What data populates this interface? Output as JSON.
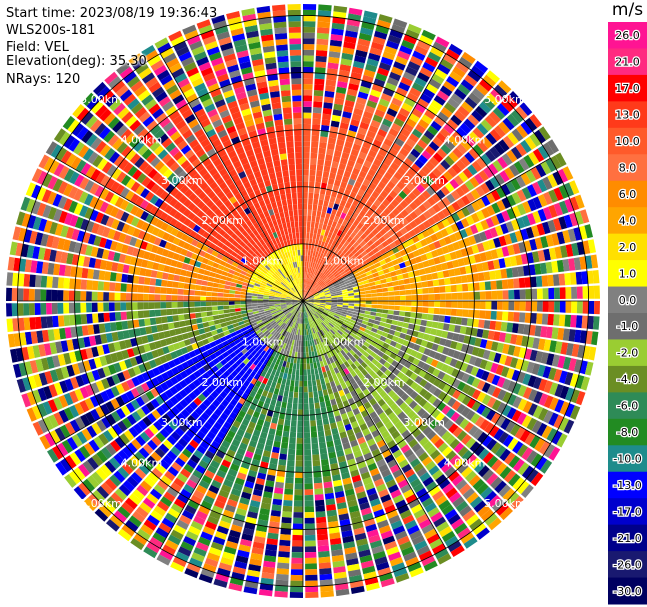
{
  "header": {
    "start_time": "Start time: 2023/08/19 19:36:43",
    "instrument": "WLS200s-181",
    "field": "Field: VEL",
    "elevation": "Elevation(deg): 35.30",
    "nrays": "NRays: 120"
  },
  "colorbar": {
    "unit": "m/s",
    "ticks": [
      "26.0",
      "21.0",
      "17.0",
      "13.0",
      "10.0",
      "8.0",
      "6.0",
      "4.0",
      "2.0",
      "1.0",
      "0.0",
      "-1.0",
      "-2.0",
      "-4.0",
      "-6.0",
      "-8.0",
      "-10.0",
      "-13.0",
      "-17.0",
      "-21.0",
      "-26.0",
      "-30.0"
    ],
    "colors": [
      "#ff1493",
      "#ff2a80",
      "#ff0000",
      "#ff3a1a",
      "#ff5a2a",
      "#ff7040",
      "#ff8c00",
      "#ffa500",
      "#ffe000",
      "#ffff00",
      "#808080",
      "#6e6e6e",
      "#9acd32",
      "#6b8e23",
      "#2e8b57",
      "#228b22",
      "#1e8c8c",
      "#0000ff",
      "#0000cd",
      "#00008b",
      "#191970",
      "#000060"
    ]
  },
  "chart_data": {
    "type": "heatmap",
    "projection": "polar-ppi",
    "field": "VEL",
    "units": "m/s",
    "nrays": 120,
    "range_ring_labels": [
      "1.00km",
      "2.00km",
      "3.00km",
      "4.00km",
      "5.00km"
    ],
    "range_rings_km": [
      1,
      2,
      3,
      4,
      5
    ],
    "max_range_km": 5.2,
    "vlim": [
      -30,
      26
    ],
    "pattern": {
      "inner_clean_range_km": 3.0,
      "sectors": [
        {
          "azimuth_deg": [
            300,
            360
          ],
          "velocity": 13
        },
        {
          "azimuth_deg": [
            0,
            60
          ],
          "velocity": 10
        },
        {
          "azimuth_deg": [
            60,
            95
          ],
          "velocity": 4
        },
        {
          "azimuth_deg": [
            95,
            165
          ],
          "velocity": -2
        },
        {
          "azimuth_deg": [
            165,
            210
          ],
          "velocity": -6
        },
        {
          "azimuth_deg": [
            210,
            245
          ],
          "velocity": -13
        },
        {
          "azimuth_deg": [
            245,
            270
          ],
          "velocity": -4
        },
        {
          "azimuth_deg": [
            270,
            300
          ],
          "velocity": 6
        }
      ],
      "near_field": [
        {
          "azimuth_deg": [
            60,
            110
          ],
          "velocity": 0.0
        },
        {
          "azimuth_deg": [
            180,
            280
          ],
          "velocity": -1.0
        },
        {
          "azimuth_deg": [
            280,
            360
          ],
          "velocity": 1.5
        }
      ],
      "outer_noise": true
    }
  }
}
